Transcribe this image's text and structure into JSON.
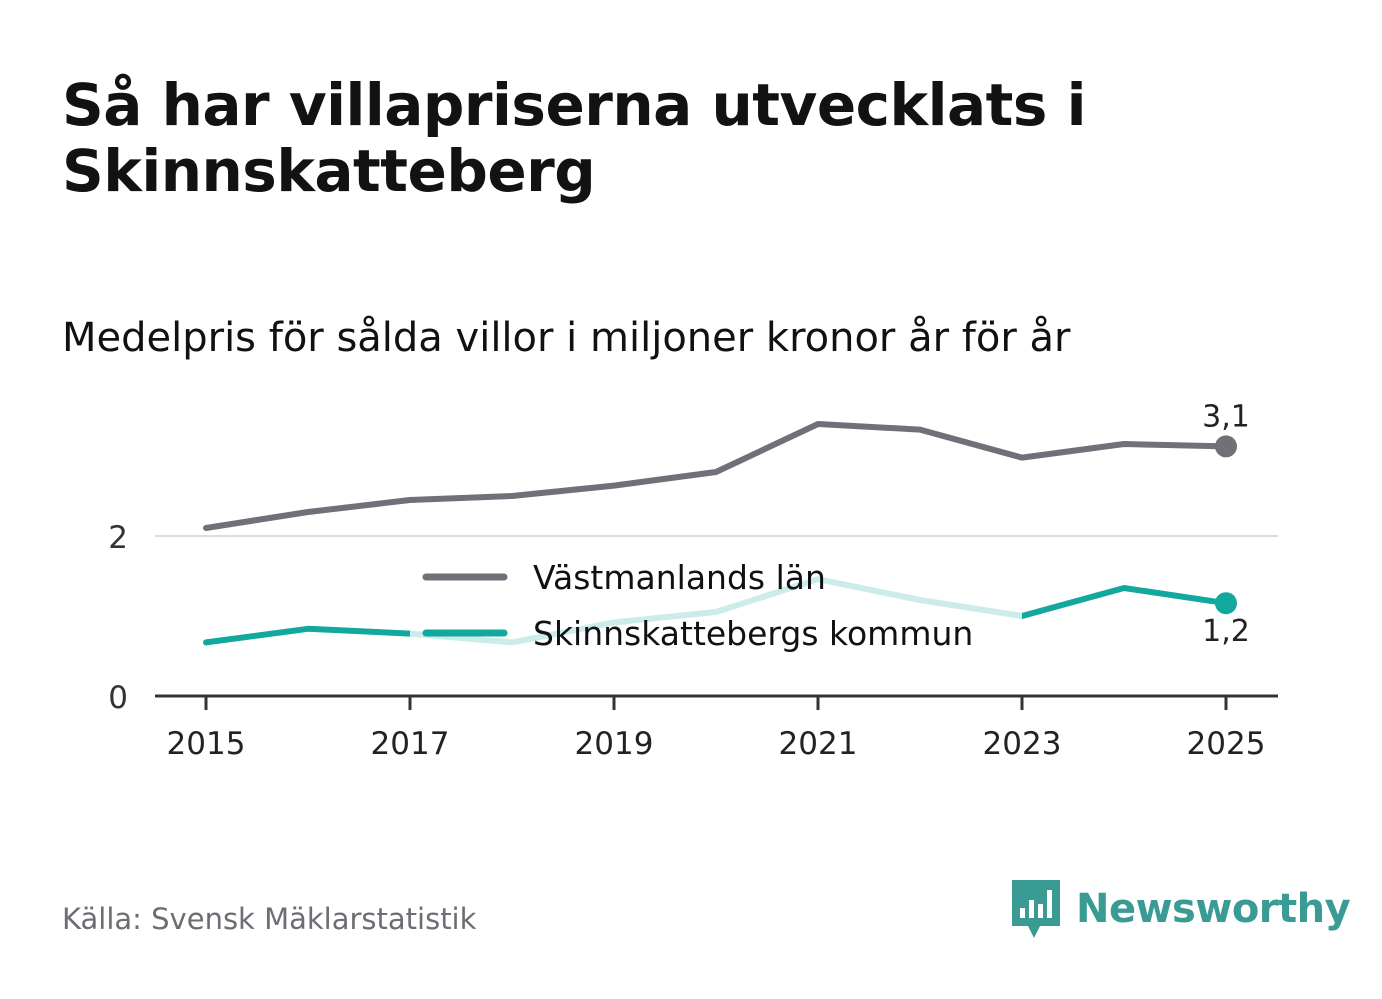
{
  "title": "Så har villapriserna utvecklats i Skinnskatteberg",
  "subtitle": "Medelpris för sålda villor i miljoner kronor år för år",
  "source": "Källa: Svensk Mäklarstatistik",
  "brand": "Newsworthy",
  "colors": {
    "county": "#707078",
    "municipality": "#12a89d",
    "municipality_faded": "#cdebe8",
    "grid": "#dddddd",
    "axis": "#333333",
    "brand": "#3a9b94"
  },
  "chart_data": {
    "type": "line",
    "title": "Så har villapriserna utvecklats i Skinnskatteberg",
    "subtitle": "Medelpris för sålda villor i miljoner kronor år för år",
    "xlabel": "",
    "ylabel": "",
    "x": [
      2015,
      2016,
      2017,
      2018,
      2019,
      2020,
      2021,
      2022,
      2023,
      2024,
      2025
    ],
    "x_ticks": [
      "2015",
      "2017",
      "2019",
      "2021",
      "2023",
      "2025"
    ],
    "x_tick_values": [
      2015,
      2017,
      2019,
      2021,
      2023,
      2025
    ],
    "y_ticks": [
      "0",
      "2"
    ],
    "y_tick_values": [
      0,
      2
    ],
    "xlim": [
      2014.75,
      2025.25
    ],
    "ylim": [
      0,
      3.7
    ],
    "grid": true,
    "legend_position": "center",
    "series": [
      {
        "name": "Västmanlands län",
        "values": [
          2.1,
          2.3,
          2.45,
          2.5,
          2.63,
          2.8,
          3.4,
          3.33,
          2.98,
          3.15,
          3.12
        ],
        "end_label": "3,1"
      },
      {
        "name": "Skinnskattebergs kommun",
        "values": [
          0.67,
          0.84,
          0.78,
          0.67,
          0.92,
          1.05,
          1.46,
          1.2,
          1.0,
          1.35,
          1.16
        ],
        "end_label": "1,2"
      }
    ]
  }
}
